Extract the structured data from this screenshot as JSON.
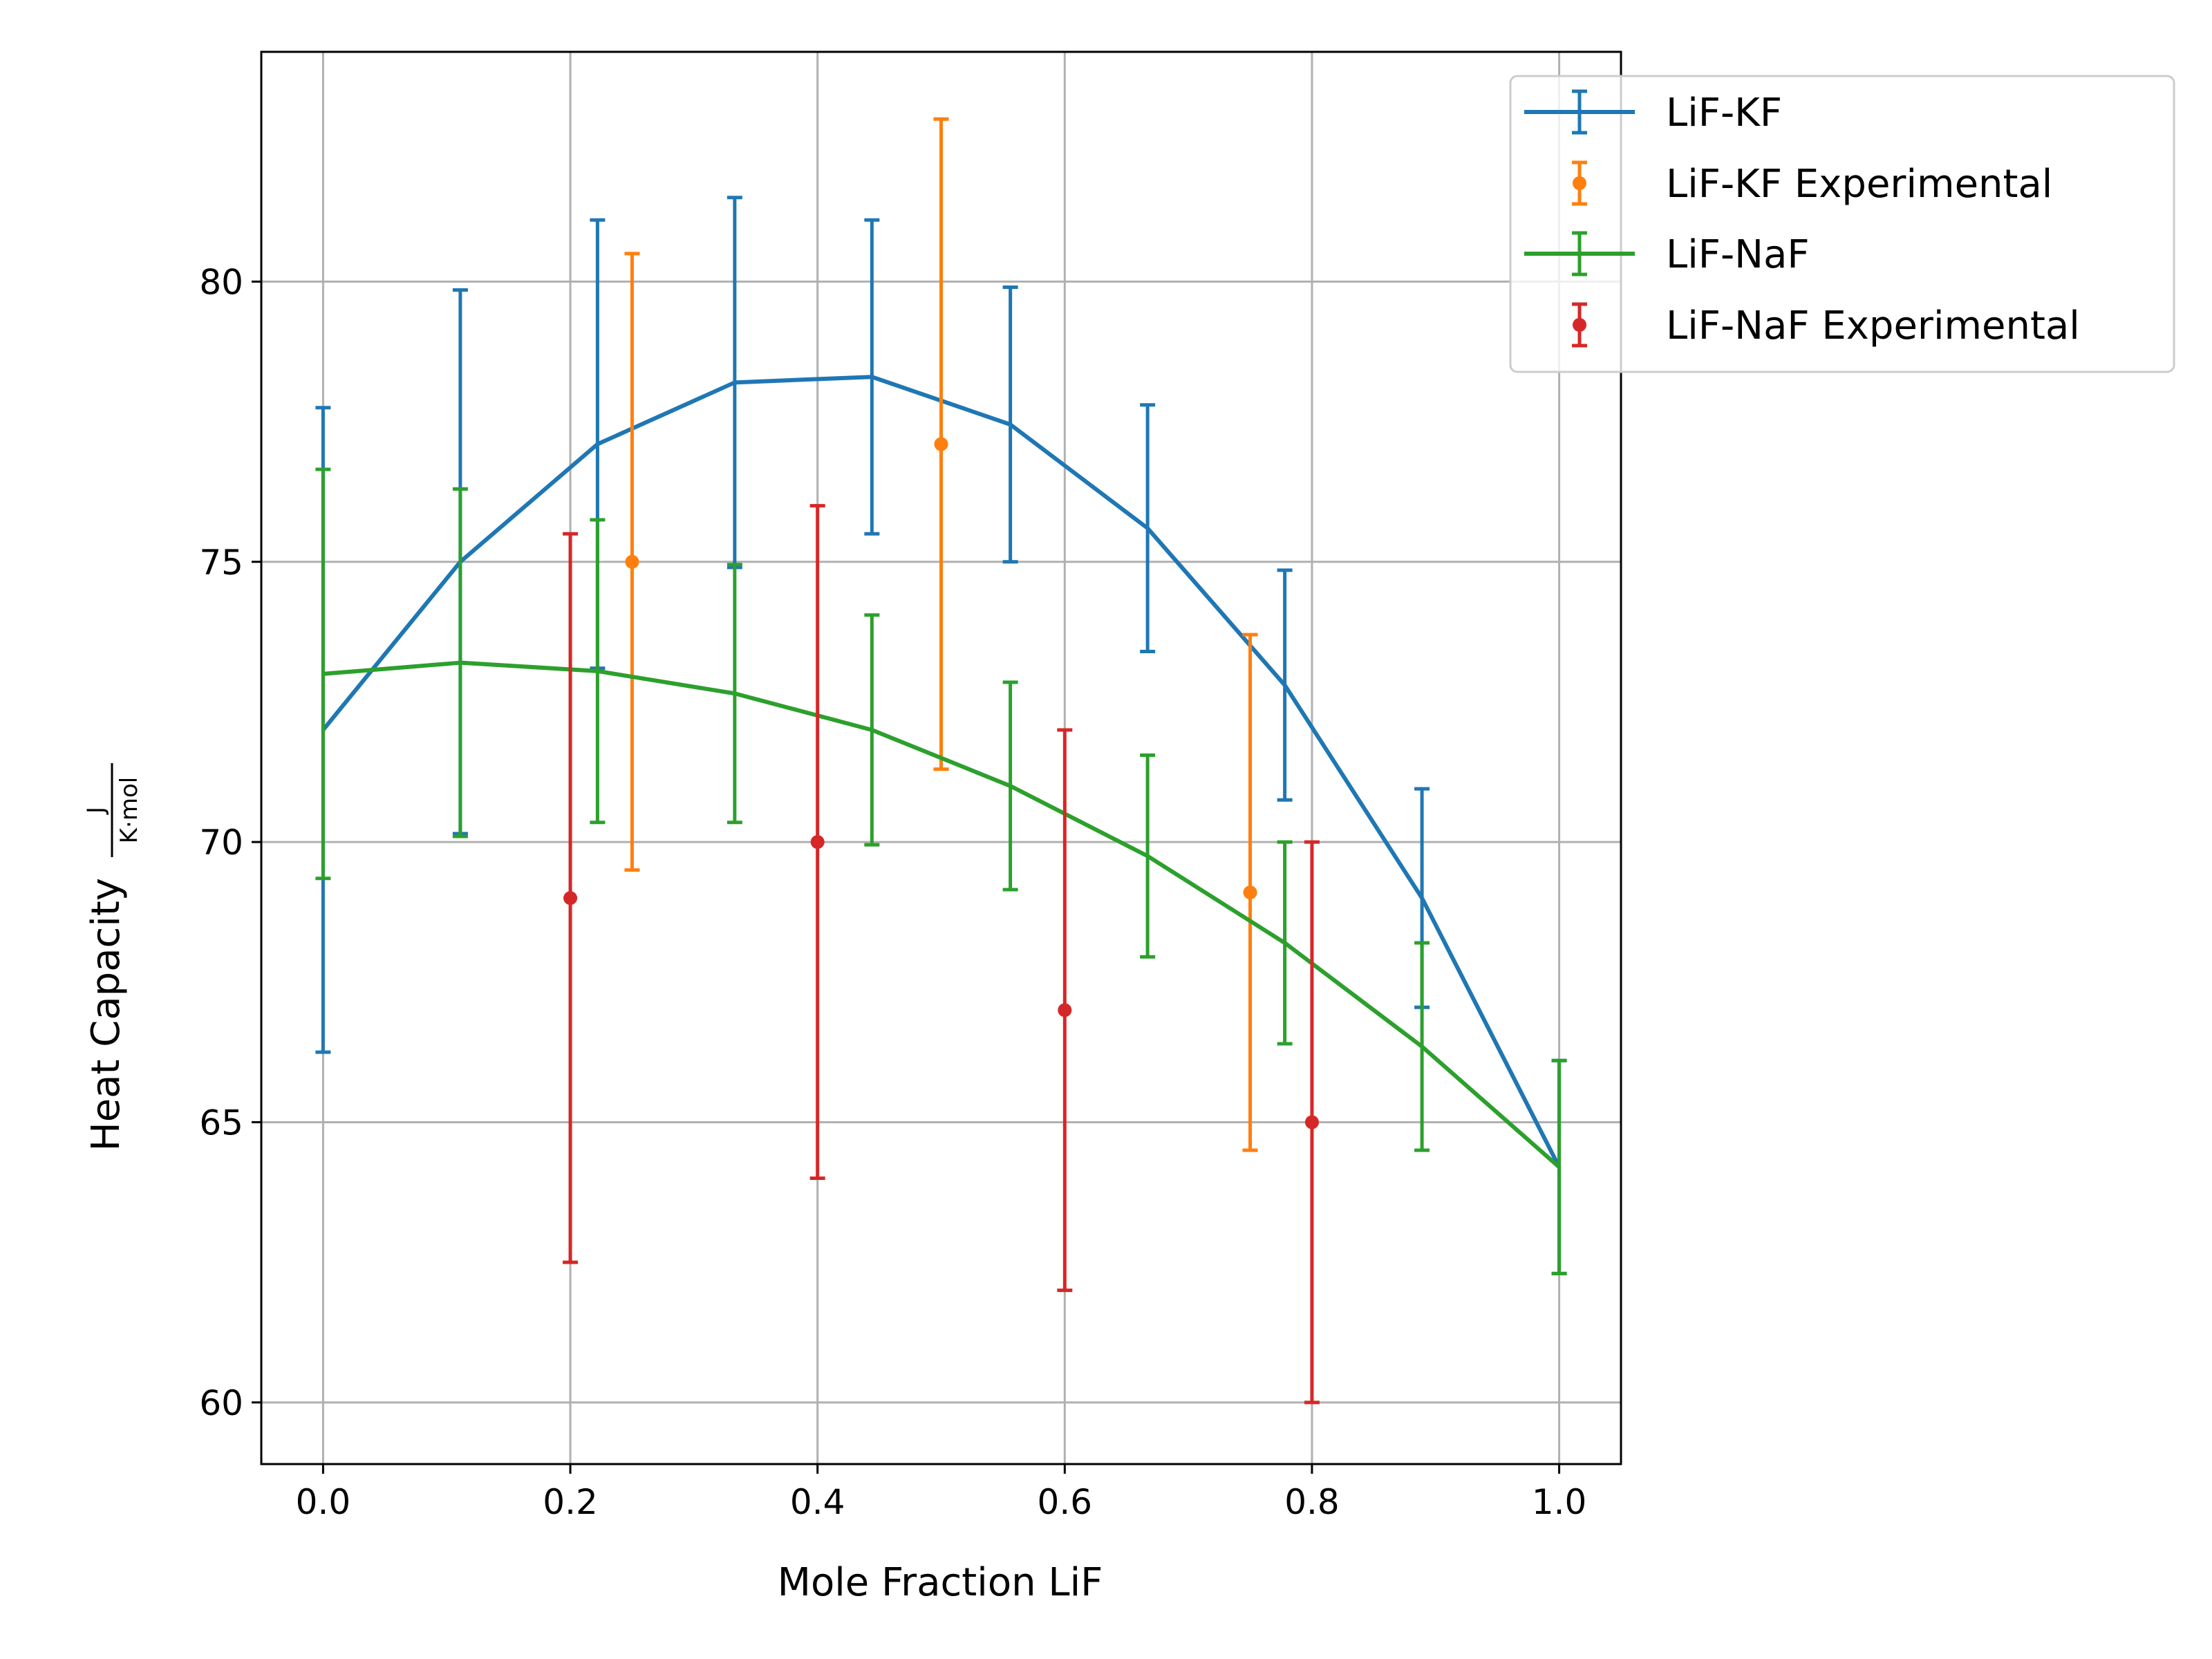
{
  "chart_data": {
    "type": "line",
    "xlabel": "Mole Fraction LiF",
    "ylabel": "Heat Capacity",
    "ylabel_unit": {
      "numerator": "J",
      "denominator": "K·mol"
    },
    "xlim": [
      -0.05,
      1.05
    ],
    "ylim": [
      58.9,
      84.1
    ],
    "xticks": [
      0.0,
      0.2,
      0.4,
      0.6,
      0.8,
      1.0
    ],
    "xtick_labels": [
      "0.0",
      "0.2",
      "0.4",
      "0.6",
      "0.8",
      "1.0"
    ],
    "yticks": [
      60,
      65,
      70,
      75,
      80
    ],
    "ytick_labels": [
      "60",
      "65",
      "70",
      "75",
      "80"
    ],
    "grid": true,
    "legend_position": "top-right outside",
    "series": [
      {
        "name": "LiF-KF",
        "kind": "line",
        "color": "#1f77b4",
        "x": [
          0.0,
          0.111,
          0.222,
          0.333,
          0.444,
          0.556,
          0.667,
          0.778,
          0.889,
          1.0
        ],
        "y": [
          72.0,
          75.0,
          77.1,
          78.2,
          78.3,
          77.45,
          75.6,
          72.8,
          69.0,
          64.2
        ],
        "err": [
          5.75,
          4.85,
          4.0,
          3.3,
          2.8,
          2.45,
          2.2,
          2.05,
          1.95,
          1.9
        ]
      },
      {
        "name": "LiF-KF Experimental",
        "kind": "points",
        "color": "#ff7f0e",
        "x": [
          0.25,
          0.5,
          0.75
        ],
        "y": [
          75.0,
          77.1,
          69.1
        ],
        "err": [
          5.5,
          5.8,
          4.6
        ]
      },
      {
        "name": "LiF-NaF",
        "kind": "line",
        "color": "#2ca02c",
        "x": [
          0.0,
          0.111,
          0.222,
          0.333,
          0.444,
          0.556,
          0.667,
          0.778,
          0.889,
          1.0
        ],
        "y": [
          73.0,
          73.2,
          73.05,
          72.65,
          72.0,
          71.0,
          69.75,
          68.2,
          66.35,
          64.2
        ],
        "err": [
          3.65,
          3.1,
          2.7,
          2.3,
          2.05,
          1.85,
          1.8,
          1.8,
          1.85,
          1.9
        ]
      },
      {
        "name": "LiF-NaF Experimental",
        "kind": "points",
        "color": "#d62728",
        "x": [
          0.2,
          0.4,
          0.6,
          0.8
        ],
        "y": [
          69.0,
          70.0,
          67.0,
          65.0
        ],
        "err": [
          6.5,
          6.0,
          5.0,
          5.0
        ]
      }
    ]
  }
}
